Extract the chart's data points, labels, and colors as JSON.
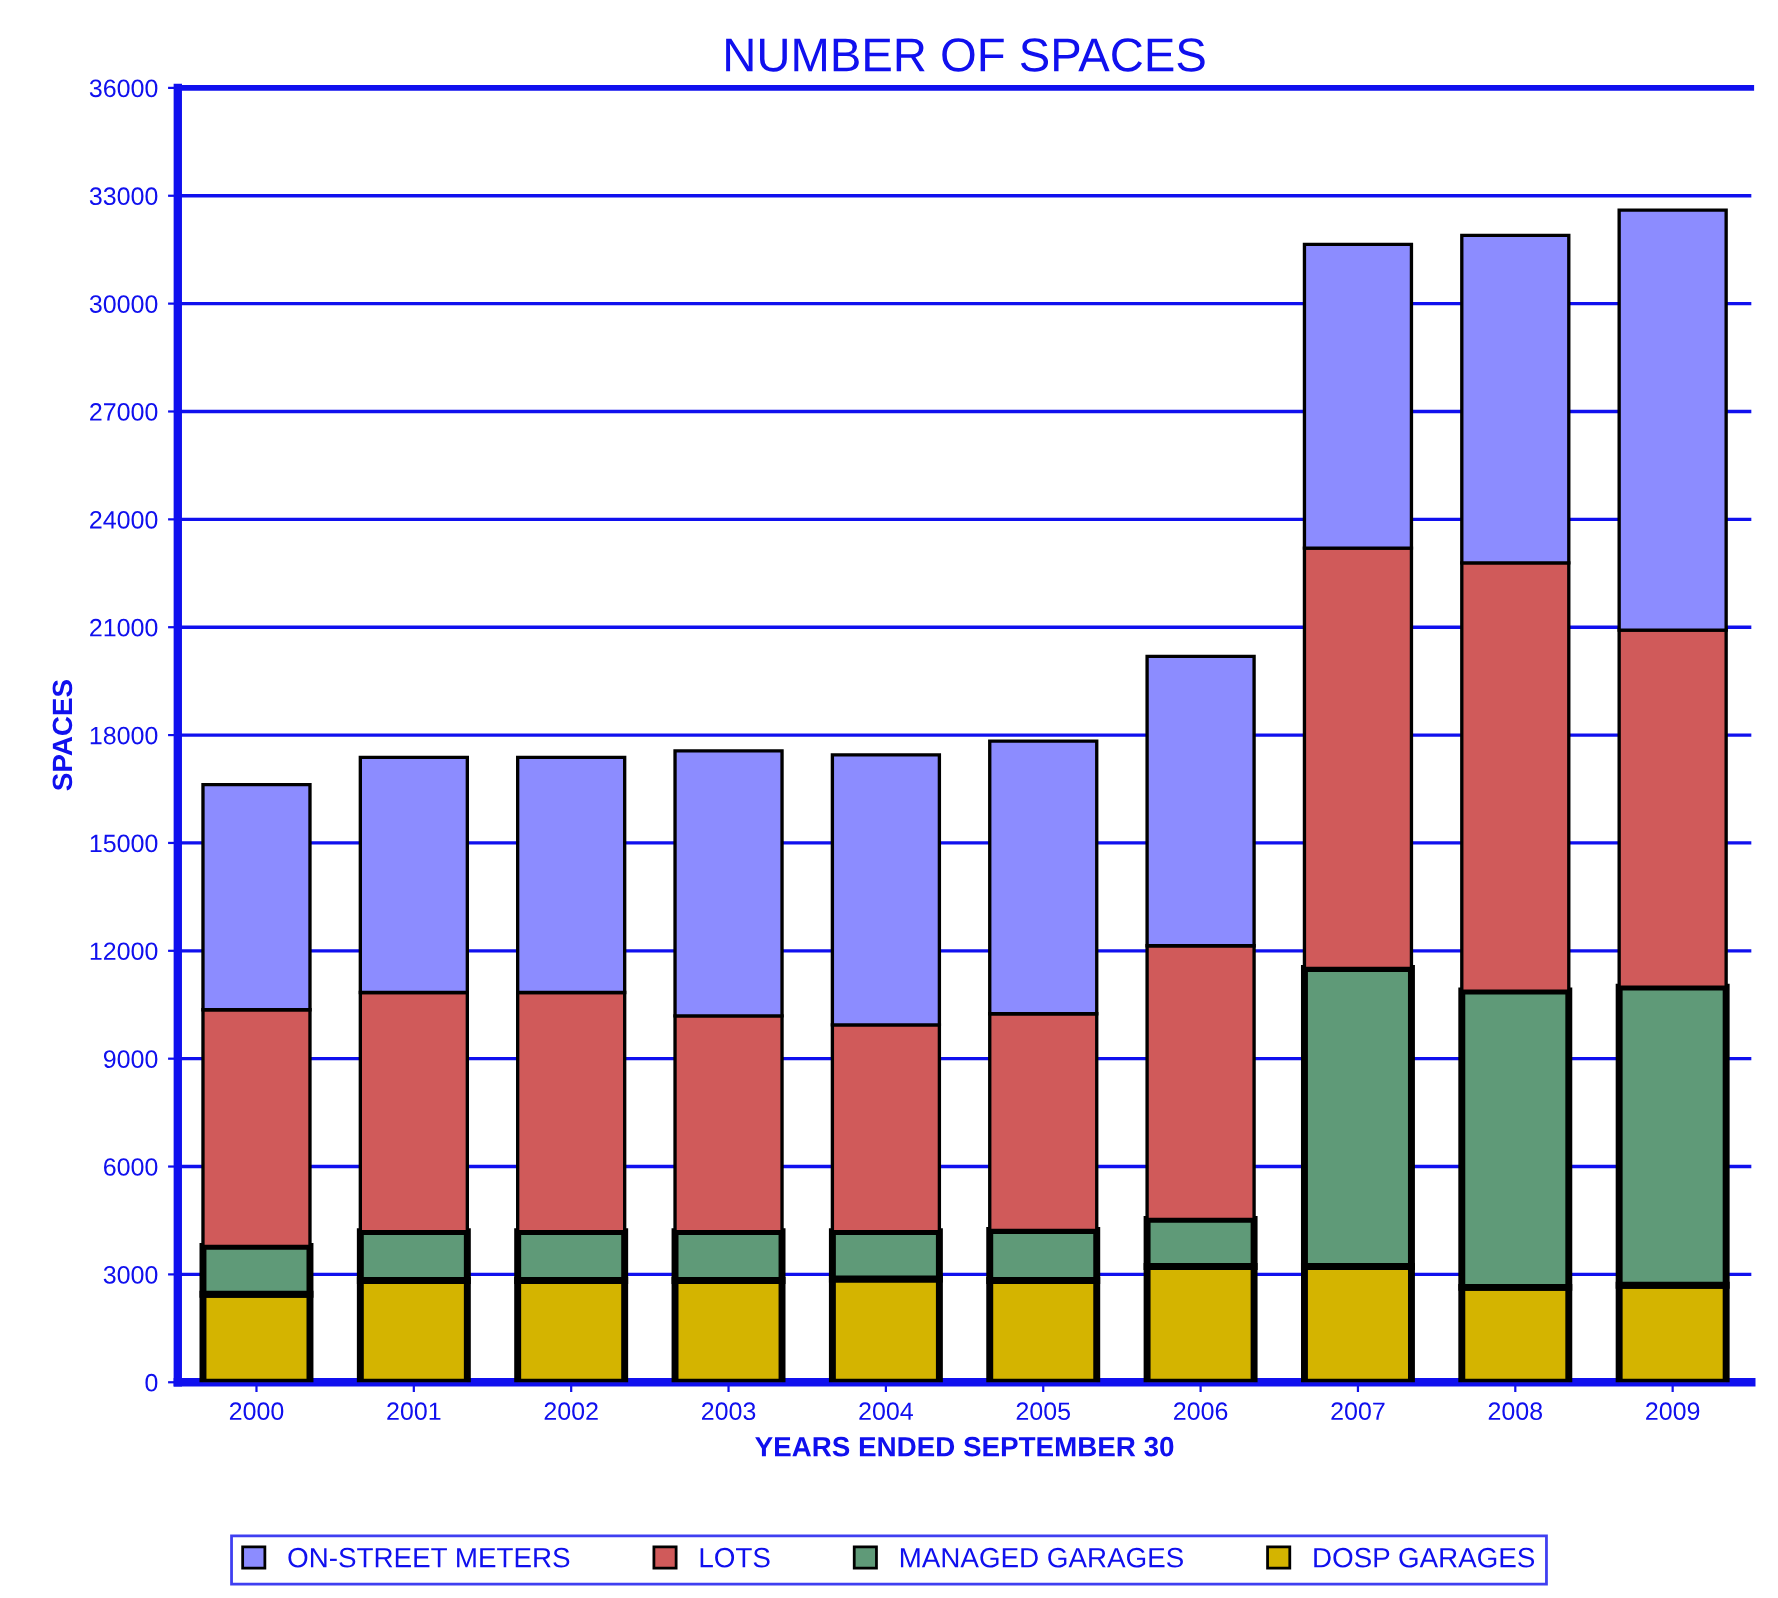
{
  "chart_data": {
    "type": "bar",
    "title": "NUMBER OF SPACES",
    "xlabel": "YEARS ENDED SEPTEMBER 30",
    "ylabel": "SPACES",
    "categories": [
      "2000",
      "2001",
      "2002",
      "2003",
      "2004",
      "2005",
      "2006",
      "2007",
      "2008",
      "2009"
    ],
    "stacked": true,
    "series": [
      {
        "name": "DOSP GARAGES",
        "color": "#d4b400",
        "values": [
          2450,
          2830,
          2830,
          2830,
          2870,
          2830,
          3220,
          3220,
          2640,
          2700
        ]
      },
      {
        "name": "MANAGED GARAGES",
        "color": "#5f9a78",
        "values": [
          1330,
          1360,
          1360,
          1360,
          1320,
          1390,
          1310,
          8290,
          8240,
          8290
        ]
      },
      {
        "name": "LOTS",
        "color": "#d05a5a",
        "values": [
          6580,
          6650,
          6650,
          6000,
          5750,
          6030,
          7610,
          11690,
          11910,
          9930
        ]
      },
      {
        "name": "ON-STREET METERS",
        "color": "#8c8cff",
        "values": [
          6260,
          6540,
          6540,
          7370,
          7510,
          7580,
          8050,
          8450,
          9110,
          11680
        ]
      }
    ],
    "ylim": [
      0,
      36000
    ],
    "yticks": [
      0,
      3000,
      6000,
      9000,
      12000,
      15000,
      18000,
      21000,
      24000,
      27000,
      30000,
      33000,
      36000
    ],
    "grid": "y",
    "legend": "bottom"
  }
}
